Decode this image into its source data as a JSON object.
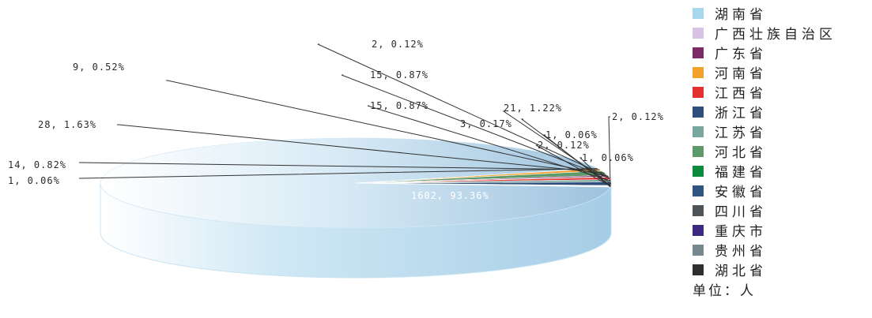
{
  "chart_data": {
    "type": "pie",
    "slices": [
      {
        "name": "湖南省",
        "value": 1602,
        "label": "1602, 93.36%",
        "color": "#a8d8ee"
      },
      {
        "name": "广西壮族自治区",
        "value": 2,
        "label": "2, 0.12%",
        "color": "#d7c4e4"
      },
      {
        "name": "广东省",
        "value": 9,
        "label": "9, 0.52%",
        "color": "#7d2a67"
      },
      {
        "name": "河南省",
        "value": 14,
        "label": "14, 0.82%",
        "color": "#f4a12c"
      },
      {
        "name": "江西省",
        "value": 15,
        "label": "15, 0.87%",
        "color": "#e33131"
      },
      {
        "name": "浙江省",
        "value": 21,
        "label": "21, 1.22%",
        "color": "#2e4e7e"
      },
      {
        "name": "江苏省",
        "value": 15,
        "label": "15, 0.87%",
        "color": "#7aa6a0"
      },
      {
        "name": "河北省",
        "value": 28,
        "label": "28, 1.63%",
        "color": "#5f9b6a"
      },
      {
        "name": "福建省",
        "value": 2,
        "label": "2, 0.12%",
        "color": "#0e8a3e"
      },
      {
        "name": "安徽省",
        "value": 3,
        "label": "3, 0.17%",
        "color": "#2f5683"
      },
      {
        "name": "四川省",
        "value": 2,
        "label": "2, 0.12%",
        "color": "#4e5358"
      },
      {
        "name": "重庆市",
        "value": 1,
        "label": "1, 0.06%",
        "color": "#3d2a80"
      },
      {
        "name": "贵州省",
        "value": 1,
        "label": "1, 0.06%",
        "color": "#76878e"
      },
      {
        "name": "湖北省",
        "value": 1,
        "label": "1, 0.06%",
        "color": "#2e2e2e"
      }
    ],
    "legend_position": "right",
    "unit_label": "单位：人"
  }
}
